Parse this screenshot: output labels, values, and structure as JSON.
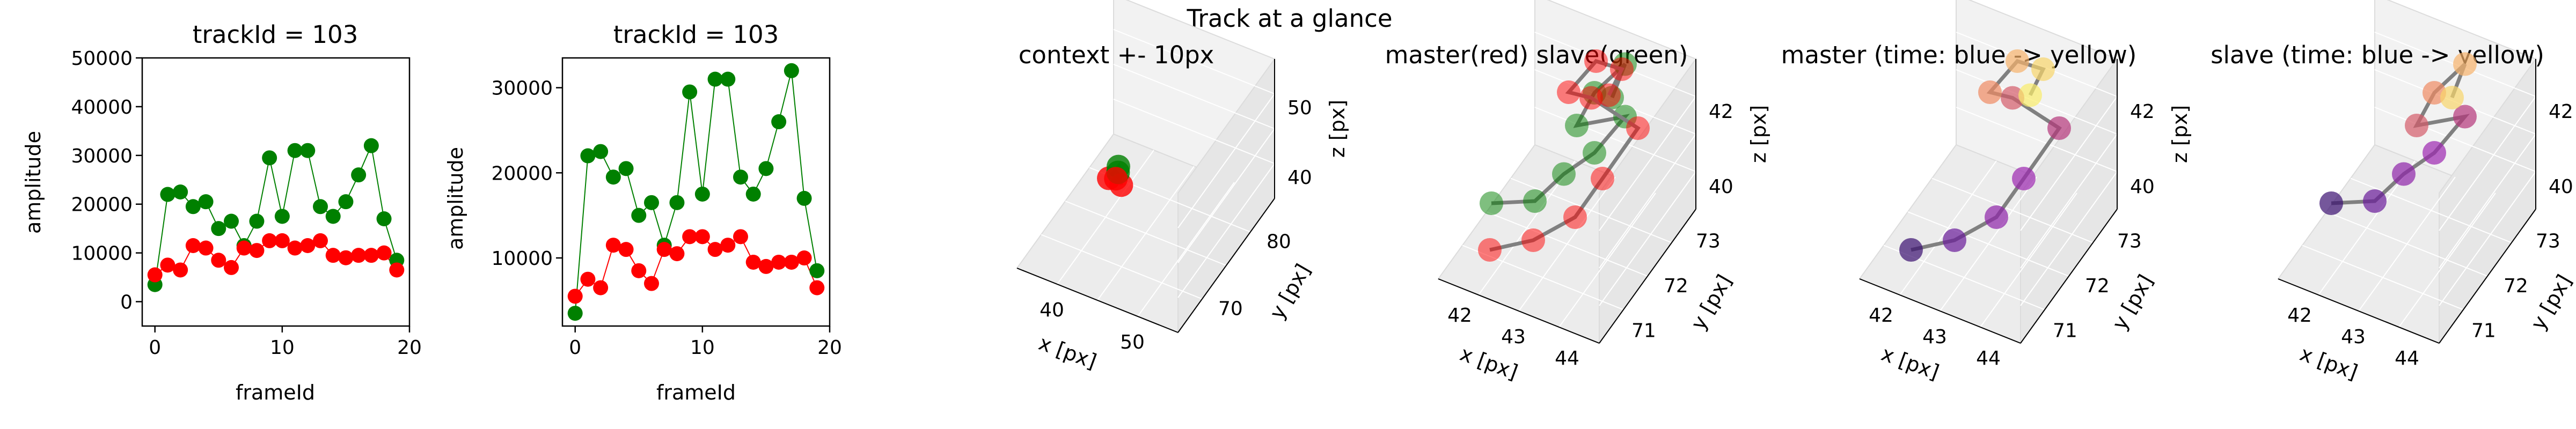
{
  "figure": {
    "suptitle": "Track at a glance"
  },
  "chart_data": [
    {
      "type": "line",
      "title": "trackId = 103",
      "xlabel": "frameId",
      "ylabel": "amplitude",
      "xlim": [
        -1,
        20
      ],
      "ylim": [
        -5000,
        50000
      ],
      "xticks": [
        0,
        10,
        20
      ],
      "yticks": [
        0,
        10000,
        20000,
        30000,
        40000,
        50000
      ],
      "x": [
        0,
        1,
        2,
        3,
        4,
        5,
        6,
        7,
        8,
        9,
        10,
        11,
        12,
        13,
        14,
        15,
        16,
        17,
        18,
        19
      ],
      "series": [
        {
          "color": "#008000",
          "values": [
            3500,
            22000,
            22500,
            19500,
            20500,
            15000,
            16500,
            11500,
            16500,
            29500,
            17500,
            31000,
            31000,
            19500,
            17500,
            20500,
            26000,
            32000,
            17000,
            8500
          ]
        },
        {
          "color": "#ff0000",
          "values": [
            5500,
            7500,
            6500,
            11500,
            11000,
            8500,
            7000,
            11000,
            10500,
            12500,
            12500,
            11000,
            11500,
            12500,
            9500,
            9000,
            9500,
            9500,
            10000,
            6500
          ]
        }
      ]
    },
    {
      "type": "line",
      "title": "trackId = 103",
      "xlabel": "frameId",
      "ylabel": "amplitude",
      "xlim": [
        -1,
        20
      ],
      "ylim": [
        2000,
        33500
      ],
      "xticks": [
        0,
        10,
        20
      ],
      "yticks": [
        10000,
        20000,
        30000
      ],
      "x": [
        0,
        1,
        2,
        3,
        4,
        5,
        6,
        7,
        8,
        9,
        10,
        11,
        12,
        13,
        14,
        15,
        16,
        17,
        18,
        19
      ],
      "series": [
        {
          "color": "#008000",
          "values": [
            3500,
            22000,
            22500,
            19500,
            20500,
            15000,
            16500,
            11500,
            16500,
            29500,
            17500,
            31000,
            31000,
            19500,
            17500,
            20500,
            26000,
            32000,
            17000,
            8500
          ]
        },
        {
          "color": "#ff0000",
          "values": [
            5500,
            7500,
            6500,
            11500,
            11000,
            8500,
            7000,
            11000,
            10500,
            12500,
            12500,
            11000,
            11500,
            12500,
            9500,
            9000,
            9500,
            9500,
            10000,
            6500
          ]
        }
      ]
    },
    {
      "type": "scatter",
      "projection": "3d",
      "title": "context +- 10px",
      "xlabel": "x [px]",
      "ylabel": "y [px]",
      "zlabel": "z [px]",
      "xticks": [
        "40",
        "50"
      ],
      "yticks": [
        "70",
        "80"
      ],
      "zticks": [
        "40",
        "50"
      ]
    },
    {
      "type": "scatter",
      "projection": "3d",
      "title": "master(red) slave(green)",
      "xlabel": "x [px]",
      "ylabel": "y [px]",
      "zlabel": "z [px]",
      "xticks": [
        "42",
        "43",
        "44"
      ],
      "yticks": [
        "71",
        "72",
        "73"
      ],
      "zticks": [
        "40",
        "42"
      ]
    },
    {
      "type": "scatter",
      "projection": "3d",
      "title": "master (time: blue -> yellow)",
      "xlabel": "x [px]",
      "ylabel": "y [px]",
      "zlabel": "z [px]",
      "xticks": [
        "42",
        "43",
        "44"
      ],
      "yticks": [
        "71",
        "72",
        "73"
      ],
      "zticks": [
        "40",
        "42"
      ]
    },
    {
      "type": "scatter",
      "projection": "3d",
      "title": "slave (time: blue -> yellow)",
      "xlabel": "x [px]",
      "ylabel": "y [px]",
      "zlabel": "z [px]",
      "xticks": [
        "42",
        "43",
        "44"
      ],
      "yticks": [
        "71",
        "72",
        "73"
      ],
      "zticks": [
        "40",
        "42"
      ]
    }
  ]
}
